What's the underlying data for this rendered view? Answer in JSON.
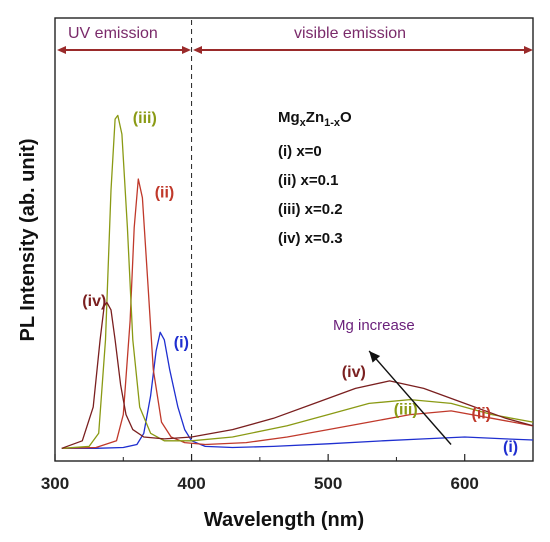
{
  "chart_data": {
    "type": "line",
    "xlabel": "Wavelength (nm)",
    "ylabel": "PL Intensity (ab. unit)",
    "xlim": [
      300,
      650
    ],
    "ylim": [
      0,
      1
    ],
    "x_ticks": [
      "300",
      "400",
      "500",
      "600"
    ],
    "regions": [
      {
        "label": "UV emission",
        "from": 300,
        "to": 400
      },
      {
        "label": "visible emission",
        "from": 400,
        "to": 650
      }
    ],
    "divider_x": 400,
    "legend": {
      "title_main": "Mg",
      "title_sub1": "x",
      "title_mid": "Zn",
      "title_sub2": "1-x",
      "title_end": "O",
      "entries": [
        "(i) x=0",
        "(ii) x=0.1",
        "(iii) x=0.2",
        "(iv)  x=0.3"
      ]
    },
    "annotation": {
      "text": "Mg increase",
      "arrow_from": [
        590,
        0.02
      ],
      "arrow_to": [
        530,
        0.27
      ]
    },
    "series": [
      {
        "name": "(i)",
        "color": "#1f2fd0",
        "x": [
          305,
          330,
          350,
          360,
          365,
          370,
          374,
          377,
          380,
          384,
          390,
          395,
          400,
          410,
          430,
          460,
          500,
          540,
          570,
          600,
          630,
          650
        ],
        "y": [
          0.01,
          0.01,
          0.012,
          0.02,
          0.05,
          0.15,
          0.27,
          0.32,
          0.3,
          0.22,
          0.12,
          0.06,
          0.03,
          0.015,
          0.012,
          0.015,
          0.022,
          0.03,
          0.035,
          0.04,
          0.035,
          0.032
        ],
        "label_pos": [
          387,
          0.28
        ],
        "label2_pos": [
          628,
          0.0
        ]
      },
      {
        "name": "(ii)",
        "color": "#c0392b",
        "x": [
          305,
          330,
          345,
          350,
          355,
          358,
          361,
          364,
          368,
          372,
          378,
          385,
          395,
          410,
          440,
          470,
          500,
          530,
          560,
          590,
          620,
          650
        ],
        "y": [
          0.01,
          0.012,
          0.03,
          0.1,
          0.35,
          0.6,
          0.73,
          0.68,
          0.45,
          0.22,
          0.08,
          0.04,
          0.025,
          0.02,
          0.025,
          0.04,
          0.06,
          0.08,
          0.1,
          0.11,
          0.09,
          0.07
        ],
        "label_pos": [
          373,
          0.68
        ],
        "label2_pos": [
          605,
          0.09
        ]
      },
      {
        "name": "(iii)",
        "color": "#8a9a14",
        "x": [
          305,
          325,
          332,
          337,
          341,
          344,
          346,
          349,
          353,
          357,
          362,
          370,
          380,
          400,
          430,
          470,
          500,
          530,
          560,
          590,
          620,
          650
        ],
        "y": [
          0.01,
          0.015,
          0.05,
          0.3,
          0.7,
          0.89,
          0.9,
          0.85,
          0.6,
          0.3,
          0.12,
          0.05,
          0.03,
          0.03,
          0.04,
          0.07,
          0.1,
          0.13,
          0.14,
          0.13,
          0.1,
          0.08
        ],
        "label_pos": [
          357,
          0.88
        ],
        "label2_pos": [
          548,
          0.1
        ]
      },
      {
        "name": "(iv)",
        "color": "#7a1f1f",
        "x": [
          305,
          320,
          328,
          333,
          336,
          338,
          341,
          344,
          348,
          352,
          357,
          365,
          380,
          400,
          430,
          460,
          490,
          520,
          545,
          570,
          600,
          630,
          650
        ],
        "y": [
          0.01,
          0.03,
          0.12,
          0.3,
          0.39,
          0.4,
          0.38,
          0.3,
          0.18,
          0.1,
          0.06,
          0.04,
          0.035,
          0.04,
          0.06,
          0.09,
          0.13,
          0.17,
          0.19,
          0.17,
          0.13,
          0.09,
          0.07
        ],
        "label_pos": [
          320,
          0.39
        ],
        "label2_pos": [
          510,
          0.2
        ]
      }
    ]
  }
}
